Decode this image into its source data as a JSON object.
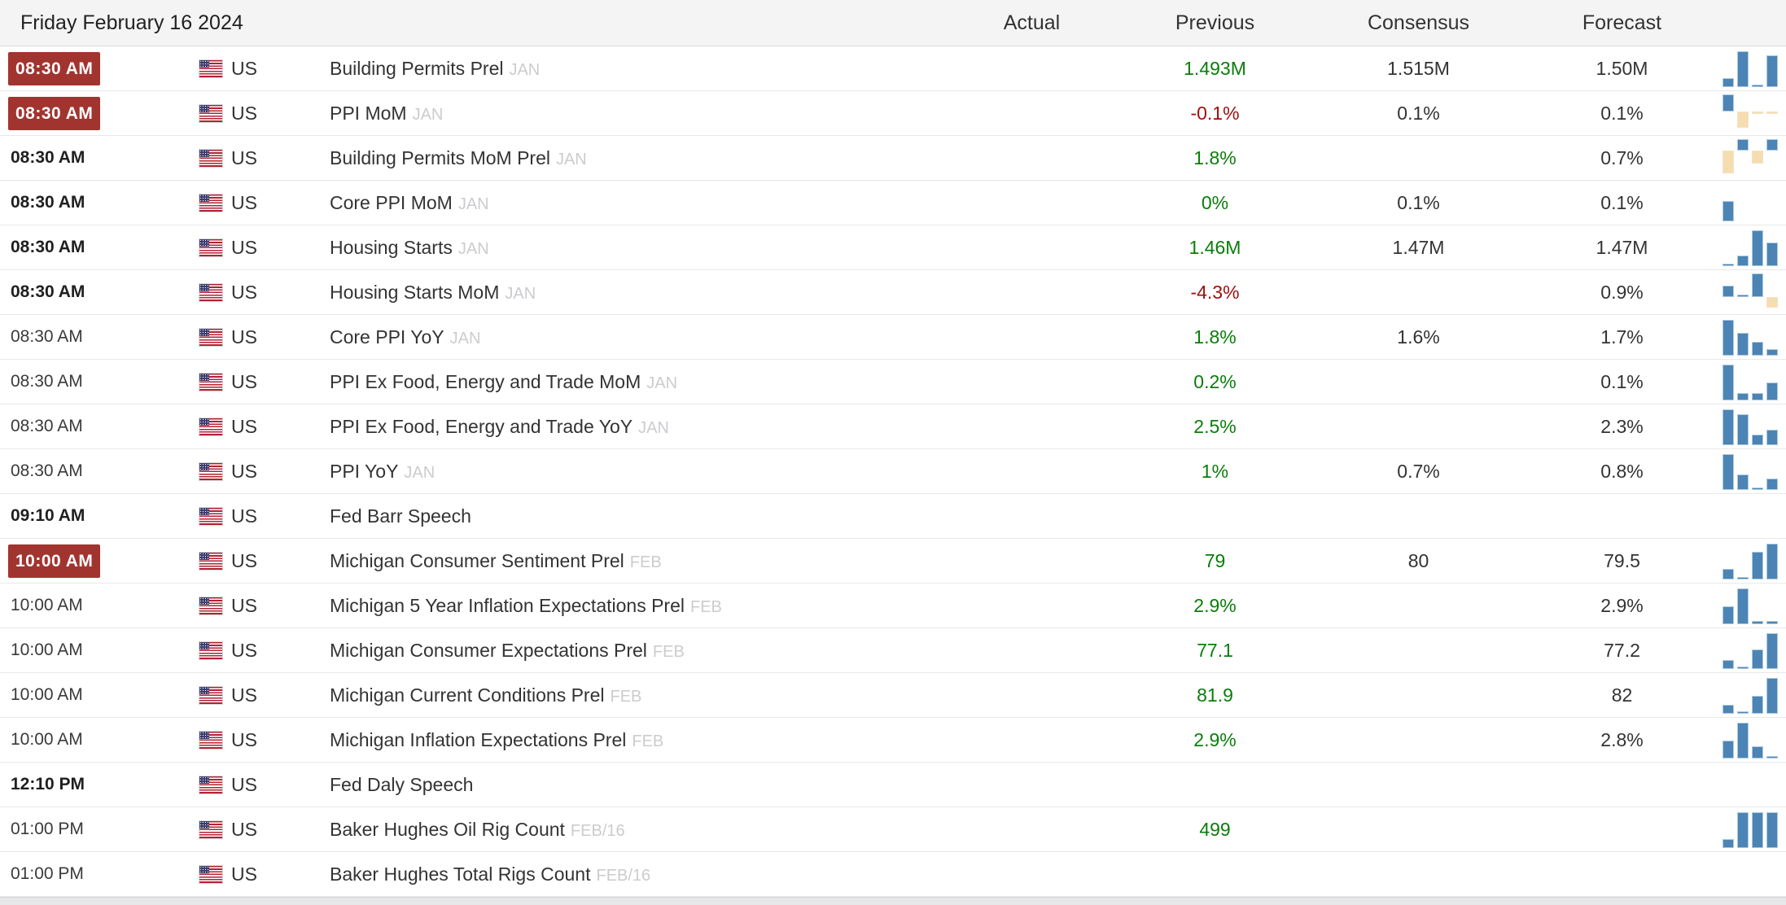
{
  "header": {
    "date": "Friday February 16 2024",
    "columns": [
      "Actual",
      "Previous",
      "Consensus",
      "Forecast"
    ]
  },
  "colors": {
    "badge_red": "#A23430",
    "positive_green": "#0a7d0a",
    "negative_red": "#9f0d0d",
    "bar_blue": "#4C84B5",
    "bar_tan": "#F5DDB1",
    "header_bg": "#f4f4f5"
  },
  "rows": [
    {
      "time": "08:30 AM",
      "time_style": "badge",
      "country": "US",
      "event": "Building Permits Prel",
      "period": "JAN",
      "actual": "",
      "previous": "1.493M",
      "previous_dir": "up",
      "consensus": "1.515M",
      "forecast": "1.50M",
      "spark": [
        0.25,
        0.95,
        0.06,
        0.85
      ]
    },
    {
      "time": "08:30 AM",
      "time_style": "badge",
      "country": "US",
      "event": "PPI MoM",
      "period": "JAN",
      "actual": "",
      "previous": "-0.1%",
      "previous_dir": "down",
      "consensus": "0.1%",
      "forecast": "0.1%",
      "spark": [
        0.45,
        -0.45,
        -0.07,
        -0.07
      ]
    },
    {
      "time": "08:30 AM",
      "time_style": "bold",
      "country": "US",
      "event": "Building Permits MoM Prel",
      "period": "JAN",
      "actual": "",
      "previous": "1.8%",
      "previous_dir": "up",
      "consensus": "",
      "forecast": "0.7%",
      "spark": [
        -0.62,
        0.3,
        -0.35,
        0.3
      ]
    },
    {
      "time": "08:30 AM",
      "time_style": "bold",
      "country": "US",
      "event": "Core PPI MoM",
      "period": "JAN",
      "actual": "",
      "previous": "0%",
      "previous_dir": "up",
      "consensus": "0.1%",
      "forecast": "0.1%",
      "spark": [
        0.55,
        0,
        0,
        0
      ]
    },
    {
      "time": "08:30 AM",
      "time_style": "bold",
      "country": "US",
      "event": "Housing Starts",
      "period": "JAN",
      "actual": "",
      "previous": "1.46M",
      "previous_dir": "up",
      "consensus": "1.47M",
      "forecast": "1.47M",
      "spark": [
        0.06,
        0.28,
        0.95,
        0.62
      ]
    },
    {
      "time": "08:30 AM",
      "time_style": "bold",
      "country": "US",
      "event": "Housing Starts MoM",
      "period": "JAN",
      "actual": "",
      "previous": "-4.3%",
      "previous_dir": "down",
      "consensus": "",
      "forecast": "0.9%",
      "spark": [
        0.3,
        0.06,
        0.62,
        -0.3
      ]
    },
    {
      "time": "08:30 AM",
      "time_style": "normal",
      "country": "US",
      "event": "Core PPI YoY",
      "period": "JAN",
      "actual": "",
      "previous": "1.8%",
      "previous_dir": "up",
      "consensus": "1.6%",
      "forecast": "1.7%",
      "spark": [
        0.95,
        0.6,
        0.38,
        0.17
      ]
    },
    {
      "time": "08:30 AM",
      "time_style": "normal",
      "country": "US",
      "event": "PPI Ex Food, Energy and Trade MoM",
      "period": "JAN",
      "actual": "",
      "previous": "0.2%",
      "previous_dir": "up",
      "consensus": "",
      "forecast": "0.1%",
      "spark": [
        0.95,
        0.2,
        0.2,
        0.48
      ]
    },
    {
      "time": "08:30 AM",
      "time_style": "normal",
      "country": "US",
      "event": "PPI Ex Food, Energy and Trade YoY",
      "period": "JAN",
      "actual": "",
      "previous": "2.5%",
      "previous_dir": "up",
      "consensus": "",
      "forecast": "2.3%",
      "spark": [
        0.95,
        0.82,
        0.28,
        0.42
      ]
    },
    {
      "time": "08:30 AM",
      "time_style": "normal",
      "country": "US",
      "event": "PPI YoY",
      "period": "JAN",
      "actual": "",
      "previous": "1%",
      "previous_dir": "up",
      "consensus": "0.7%",
      "forecast": "0.8%",
      "spark": [
        0.95,
        0.42,
        0.06,
        0.3
      ]
    },
    {
      "time": "09:10 AM",
      "time_style": "bold",
      "country": "US",
      "event": "Fed Barr Speech",
      "period": "",
      "actual": "",
      "previous": "",
      "previous_dir": "",
      "consensus": "",
      "forecast": "",
      "spark": null
    },
    {
      "time": "10:00 AM",
      "time_style": "badge",
      "country": "US",
      "event": "Michigan Consumer Sentiment Prel",
      "period": "FEB",
      "actual": "",
      "previous": "79",
      "previous_dir": "up",
      "consensus": "80",
      "forecast": "79.5",
      "spark": [
        0.28,
        0.06,
        0.75,
        0.95
      ]
    },
    {
      "time": "10:00 AM",
      "time_style": "normal",
      "country": "US",
      "event": "Michigan 5 Year Inflation Expectations Prel",
      "period": "FEB",
      "actual": "",
      "previous": "2.9%",
      "previous_dir": "up",
      "consensus": "",
      "forecast": "2.9%",
      "spark": [
        0.48,
        0.95,
        0.08,
        0.08
      ]
    },
    {
      "time": "10:00 AM",
      "time_style": "normal",
      "country": "US",
      "event": "Michigan Consumer Expectations Prel",
      "period": "FEB",
      "actual": "",
      "previous": "77.1",
      "previous_dir": "up",
      "consensus": "",
      "forecast": "77.2",
      "spark": [
        0.24,
        0.06,
        0.52,
        0.95
      ]
    },
    {
      "time": "10:00 AM",
      "time_style": "normal",
      "country": "US",
      "event": "Michigan Current Conditions Prel",
      "period": "FEB",
      "actual": "",
      "previous": "81.9",
      "previous_dir": "up",
      "consensus": "",
      "forecast": "82",
      "spark": [
        0.24,
        0.06,
        0.48,
        0.95
      ]
    },
    {
      "time": "10:00 AM",
      "time_style": "normal",
      "country": "US",
      "event": "Michigan Inflation Expectations Prel",
      "period": "FEB",
      "actual": "",
      "previous": "2.9%",
      "previous_dir": "up",
      "consensus": "",
      "forecast": "2.8%",
      "spark": [
        0.48,
        0.95,
        0.33,
        0.07
      ]
    },
    {
      "time": "12:10 PM",
      "time_style": "bold",
      "country": "US",
      "event": "Fed Daly Speech",
      "period": "",
      "actual": "",
      "previous": "",
      "previous_dir": "",
      "consensus": "",
      "forecast": "",
      "spark": null
    },
    {
      "time": "01:00 PM",
      "time_style": "normal",
      "country": "US",
      "event": "Baker Hughes Oil Rig Count",
      "period": "FEB/16",
      "actual": "",
      "previous": "499",
      "previous_dir": "up",
      "consensus": "",
      "forecast": "",
      "spark": [
        0.25,
        0.95,
        0.95,
        0.95
      ]
    },
    {
      "time": "01:00 PM",
      "time_style": "normal",
      "country": "US",
      "event": "Baker Hughes Total Rigs Count",
      "period": "FEB/16",
      "actual": "",
      "previous": "",
      "previous_dir": "",
      "consensus": "",
      "forecast": "",
      "spark": null
    }
  ]
}
